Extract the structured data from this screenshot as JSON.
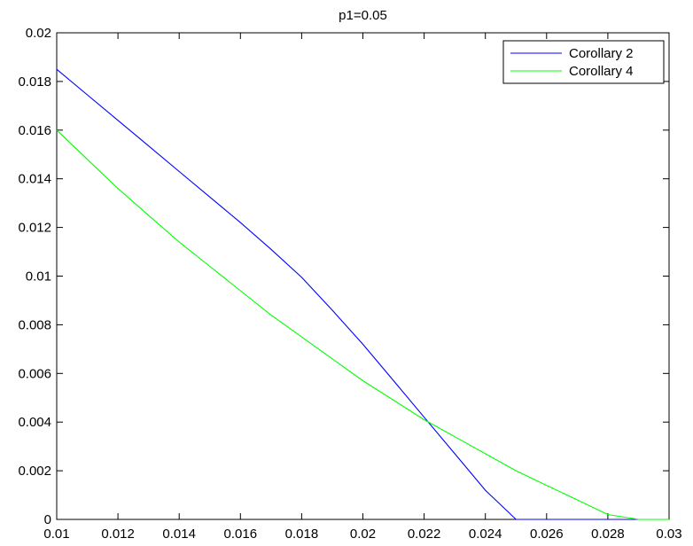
{
  "chart_data": {
    "type": "line",
    "title": "p1=0.05",
    "xlabel": "",
    "ylabel": "",
    "xlim": [
      0.01,
      0.03
    ],
    "ylim": [
      0,
      0.02
    ],
    "grid": false,
    "legend_position": "top-right",
    "x_ticks": [
      "0.01",
      "0.012",
      "0.014",
      "0.016",
      "0.018",
      "0.02",
      "0.022",
      "0.024",
      "0.026",
      "0.028",
      "0.03"
    ],
    "x_tick_values": [
      0.01,
      0.012,
      0.014,
      0.016,
      0.018,
      0.02,
      0.022,
      0.024,
      0.026,
      0.028,
      0.03
    ],
    "y_ticks": [
      "0",
      "0.002",
      "0.004",
      "0.006",
      "0.008",
      "0.01",
      "0.012",
      "0.014",
      "0.016",
      "0.018",
      "0.02"
    ],
    "y_tick_values": [
      0,
      0.002,
      0.004,
      0.006,
      0.008,
      0.01,
      0.012,
      0.014,
      0.016,
      0.018,
      0.02
    ],
    "series": [
      {
        "name": "Corollary 2",
        "color": "#0000ff",
        "x": [
          0.01,
          0.011,
          0.012,
          0.013,
          0.014,
          0.015,
          0.016,
          0.017,
          0.018,
          0.019,
          0.02,
          0.021,
          0.022,
          0.023,
          0.024,
          0.025,
          0.026,
          0.027,
          0.028,
          0.029,
          0.03
        ],
        "y": [
          0.0185,
          0.01745,
          0.0164,
          0.01535,
          0.0143,
          0.01325,
          0.0122,
          0.0111,
          0.00995,
          0.0086,
          0.0072,
          0.0057,
          0.0042,
          0.0027,
          0.0012,
          0.0,
          0.0,
          0.0,
          0.0,
          0.0,
          0.0
        ]
      },
      {
        "name": "Corollary 4",
        "color": "#00ff00",
        "x": [
          0.01,
          0.011,
          0.012,
          0.013,
          0.014,
          0.015,
          0.016,
          0.017,
          0.018,
          0.019,
          0.02,
          0.021,
          0.022,
          0.023,
          0.024,
          0.025,
          0.026,
          0.027,
          0.028,
          0.029,
          0.03
        ],
        "y": [
          0.016,
          0.0148,
          0.0136,
          0.0125,
          0.0114,
          0.0104,
          0.0094,
          0.0084,
          0.0075,
          0.0066,
          0.0057,
          0.0049,
          0.0041,
          0.0034,
          0.0027,
          0.002,
          0.0014,
          0.0008,
          0.0002,
          0.0,
          0.0
        ]
      }
    ]
  }
}
